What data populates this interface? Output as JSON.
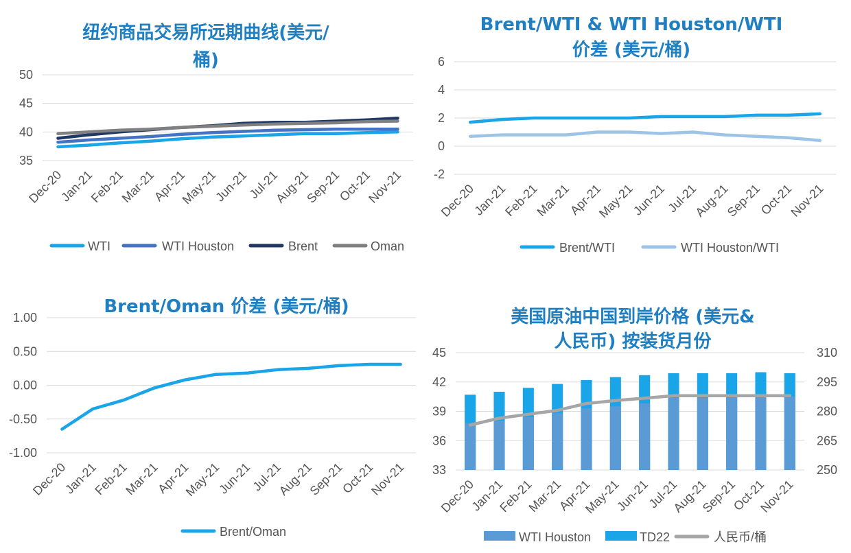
{
  "chart_data": [
    {
      "id": "futures",
      "type": "line",
      "title_lines": [
        "纽约商品交易所远期曲线(美元/",
        "桶)"
      ],
      "categories": [
        "Dec-20",
        "Jan-21",
        "Feb-21",
        "Mar-21",
        "Apr-21",
        "May-21",
        "Jun-21",
        "Jul-21",
        "Aug-21",
        "Sep-21",
        "Oct-21",
        "Nov-21"
      ],
      "ylim": [
        35,
        50
      ],
      "yticks": [
        "35",
        "40",
        "45",
        "50"
      ],
      "grid": true,
      "legend_position": "bottom",
      "series": [
        {
          "name": "WTI",
          "color": "#1aa5e8",
          "values": [
            37.4,
            37.7,
            38.1,
            38.4,
            38.8,
            39.1,
            39.3,
            39.5,
            39.7,
            39.7,
            39.9,
            40.0
          ]
        },
        {
          "name": "WTI Houston",
          "color": "#4472c4",
          "values": [
            38.2,
            38.6,
            38.9,
            39.2,
            39.6,
            39.9,
            40.1,
            40.3,
            40.4,
            40.5,
            40.5,
            40.5
          ]
        },
        {
          "name": "Brent",
          "color": "#203864",
          "values": [
            38.9,
            39.5,
            40.0,
            40.4,
            40.8,
            41.1,
            41.5,
            41.7,
            41.7,
            41.9,
            42.1,
            42.4
          ]
        },
        {
          "name": "Oman",
          "color": "#808080",
          "values": [
            39.7,
            40.0,
            40.3,
            40.5,
            40.8,
            41.0,
            41.2,
            41.4,
            41.5,
            41.6,
            41.8,
            41.9
          ]
        }
      ]
    },
    {
      "id": "spreads",
      "type": "line",
      "title_lines": [
        "Brent/WTI & WTI Houston/WTI",
        "价差 (美元/桶)"
      ],
      "categories": [
        "Dec-20",
        "Jan-21",
        "Feb-21",
        "Mar-21",
        "Apr-21",
        "May-21",
        "Jun-21",
        "Jul-21",
        "Aug-21",
        "Sep-21",
        "Oct-21",
        "Nov-21"
      ],
      "ylim": [
        -2,
        6
      ],
      "yticks": [
        "-2",
        "0",
        "2",
        "4",
        "6"
      ],
      "grid": true,
      "legend_position": "bottom",
      "series": [
        {
          "name": "Brent/WTI",
          "color": "#1aa5e8",
          "values": [
            1.7,
            1.9,
            2.0,
            2.0,
            2.0,
            2.0,
            2.1,
            2.1,
            2.1,
            2.2,
            2.2,
            2.3
          ]
        },
        {
          "name": "WTI Houston/WTI",
          "color": "#9dc3e6",
          "values": [
            0.7,
            0.8,
            0.8,
            0.8,
            1.0,
            1.0,
            0.9,
            1.0,
            0.8,
            0.7,
            0.6,
            0.4
          ]
        }
      ]
    },
    {
      "id": "brent-oman",
      "type": "line",
      "title_lines": [
        "Brent/Oman 价差 (美元/桶)"
      ],
      "categories": [
        "Dec-20",
        "Jan-21",
        "Feb-21",
        "Mar-21",
        "Apr-21",
        "May-21",
        "Jun-21",
        "Jul-21",
        "Aug-21",
        "Sep-21",
        "Oct-21",
        "Nov-21"
      ],
      "ylim": [
        -1.0,
        1.0
      ],
      "yticks": [
        "-1.00",
        "-0.50",
        "0.00",
        "0.50",
        "1.00"
      ],
      "grid": true,
      "legend_position": "bottom",
      "series": [
        {
          "name": "Brent/Oman",
          "color": "#1aa5e8",
          "values": [
            -0.65,
            -0.35,
            -0.22,
            -0.04,
            0.08,
            0.16,
            0.18,
            0.23,
            0.25,
            0.29,
            0.31,
            0.31
          ]
        }
      ]
    },
    {
      "id": "landed-price",
      "type": "bar",
      "title_lines": [
        "美国原油中国到岸价格 (美元&",
        "人民币) 按装货月份"
      ],
      "categories": [
        "Dec-20",
        "Jan-21",
        "Feb-21",
        "Mar-21",
        "Apr-21",
        "May-21",
        "Jun-21",
        "Jul-21",
        "Aug-21",
        "Sep-21",
        "Oct-21",
        "Nov-21"
      ],
      "ylim": [
        33,
        45
      ],
      "yticks": [
        "33",
        "36",
        "39",
        "42",
        "45"
      ],
      "y2lim": [
        250,
        310
      ],
      "y2ticks": [
        "250",
        "265",
        "280",
        "295",
        "310"
      ],
      "grid": true,
      "legend_position": "bottom",
      "series": [
        {
          "name": "WTI Houston",
          "kind": "bar",
          "color": "#5b9bd5",
          "values": [
            37.8,
            38.0,
            38.4,
            38.8,
            39.3,
            39.5,
            39.8,
            40.4,
            40.4,
            40.5,
            40.5,
            40.5
          ]
        },
        {
          "name": "TD22",
          "kind": "bar",
          "color": "#1aa5e8",
          "values": [
            40.7,
            41.0,
            41.4,
            41.8,
            42.2,
            42.5,
            42.7,
            42.9,
            42.9,
            42.9,
            43.0,
            42.9
          ]
        },
        {
          "name": "人民币/桶",
          "kind": "line",
          "axis": "right",
          "color": "#a6a6a6",
          "values": [
            273,
            276.5,
            278.5,
            280.5,
            284,
            285.5,
            286.7,
            288,
            288,
            288,
            288,
            288
          ]
        }
      ]
    }
  ]
}
